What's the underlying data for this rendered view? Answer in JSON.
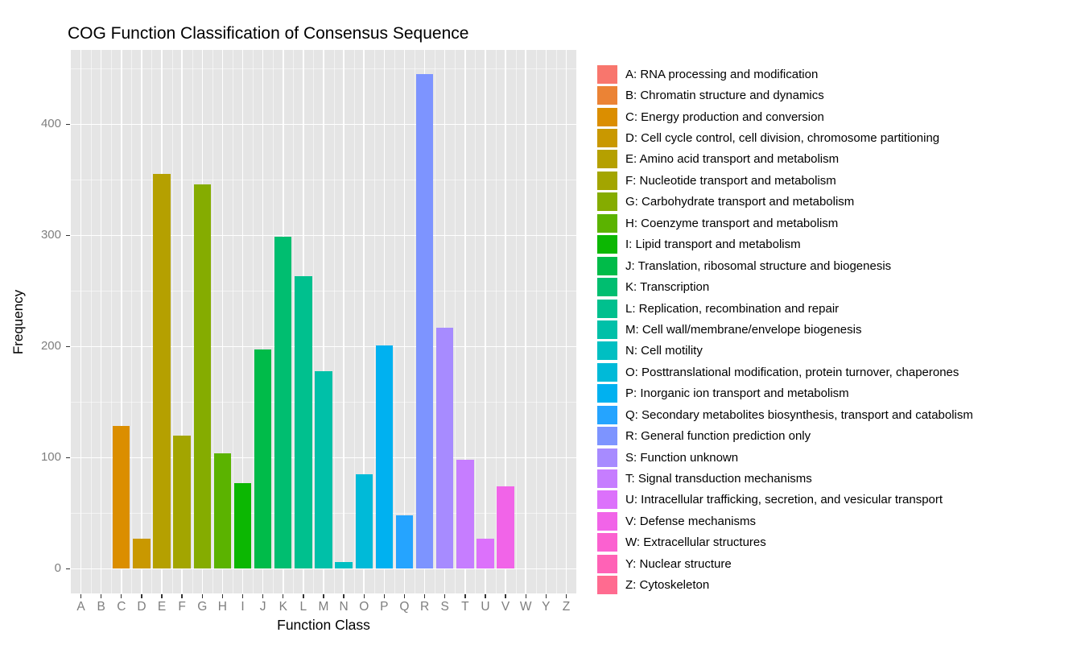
{
  "title": "COG Function Classification of Consensus Sequence",
  "panel_background": "#E5E5E5",
  "grid_color": "#FFFFFF",
  "tick_label_color": "#7E7E7E",
  "chart_data": {
    "type": "bar",
    "title": "COG Function Classification of Consensus Sequence",
    "xlabel": "Function Class",
    "ylabel": "Frequency",
    "ylim": [
      0,
      450
    ],
    "yticks": [
      0,
      100,
      200,
      300,
      400
    ],
    "grid": "on",
    "legend_position": "right",
    "categories": [
      "A",
      "B",
      "C",
      "D",
      "E",
      "F",
      "G",
      "H",
      "I",
      "J",
      "K",
      "L",
      "M",
      "N",
      "O",
      "P",
      "Q",
      "R",
      "S",
      "T",
      "U",
      "V",
      "W",
      "Y",
      "Z"
    ],
    "values": [
      0,
      0,
      128,
      27,
      355,
      120,
      346,
      104,
      77,
      197,
      299,
      263,
      178,
      6,
      85,
      201,
      48,
      445,
      217,
      98,
      27,
      74,
      0,
      0,
      0
    ],
    "colors": [
      "#F8766D",
      "#EB8335",
      "#DB8E00",
      "#C99800",
      "#B5A000",
      "#A3A500",
      "#85AC00",
      "#5BB300",
      "#0CB702",
      "#00BB49",
      "#00BE70",
      "#00C08E",
      "#00C0A8",
      "#00BFC2",
      "#00BAD8",
      "#00B1F0",
      "#25A4FF",
      "#7D94FF",
      "#A78BFF",
      "#C67DFF",
      "#DC71FB",
      "#F164E8",
      "#FB61D0",
      "#FF62B6",
      "#FF6B90"
    ],
    "legend_labels": [
      "A: RNA processing and modification",
      "B: Chromatin structure and dynamics",
      "C: Energy production and conversion",
      "D: Cell cycle control, cell division, chromosome partitioning",
      "E: Amino acid transport and metabolism",
      "F: Nucleotide transport and metabolism",
      "G: Carbohydrate transport and metabolism",
      "H: Coenzyme transport and metabolism",
      "I: Lipid transport and metabolism",
      "J: Translation, ribosomal structure and biogenesis",
      "K: Transcription",
      "L: Replication, recombination and repair",
      "M: Cell wall/membrane/envelope biogenesis",
      "N: Cell motility",
      "O: Posttranslational modification, protein turnover, chaperones",
      "P: Inorganic ion transport and metabolism",
      "Q: Secondary metabolites biosynthesis, transport and catabolism",
      "R: General function prediction only",
      "S: Function unknown",
      "T: Signal transduction mechanisms",
      "U: Intracellular trafficking, secretion, and vesicular transport",
      "V: Defense mechanisms",
      "W: Extracellular structures",
      "Y: Nuclear structure",
      "Z: Cytoskeleton"
    ]
  }
}
